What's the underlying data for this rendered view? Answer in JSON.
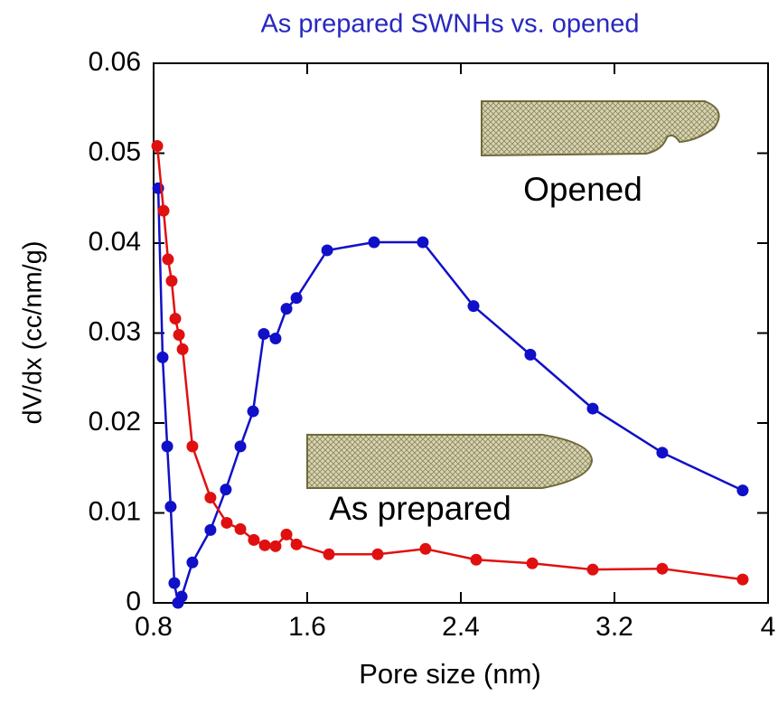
{
  "chart_data": {
    "type": "line",
    "title": "As prepared SWNHs vs. opened",
    "x_label": "Pore size (nm)",
    "y_label": "dV/dx (cc/nm/g)",
    "xlim": [
      0.8,
      4
    ],
    "xticks": [
      0.8,
      1.6,
      2.4,
      3.2,
      4
    ],
    "ylim": [
      0,
      0.06
    ],
    "yticks": [
      0,
      0.01,
      0.02,
      0.03,
      0.04,
      0.05,
      0.06
    ],
    "series": [
      {
        "name": "Opened",
        "color": "#1010c8",
        "x": [
          0.824,
          0.847,
          0.871,
          0.889,
          0.908,
          0.927,
          0.946,
          1.002,
          1.096,
          1.176,
          1.252,
          1.318,
          1.374,
          1.435,
          1.492,
          1.544,
          1.704,
          1.948,
          2.202,
          2.466,
          2.762,
          3.087,
          3.449,
          3.868
        ],
        "values": [
          0.0461,
          0.0273,
          0.0174,
          0.0107,
          0.0022,
          0.0,
          0.0007,
          0.0045,
          0.0081,
          0.0126,
          0.0174,
          0.0213,
          0.0299,
          0.0294,
          0.0327,
          0.0339,
          0.0392,
          0.0401,
          0.0401,
          0.033,
          0.0276,
          0.0216,
          0.0167,
          0.0125
        ]
      },
      {
        "name": "As prepared",
        "color": "#e01010",
        "x": [
          0.819,
          0.852,
          0.875,
          0.894,
          0.913,
          0.932,
          0.951,
          1.002,
          1.096,
          1.181,
          1.252,
          1.322,
          1.379,
          1.435,
          1.492,
          1.544,
          1.713,
          1.967,
          2.216,
          2.48,
          2.772,
          3.087,
          3.449,
          3.868
        ],
        "values": [
          0.0508,
          0.0436,
          0.0382,
          0.0358,
          0.0316,
          0.0298,
          0.0282,
          0.0174,
          0.0117,
          0.0089,
          0.0082,
          0.007,
          0.0064,
          0.0063,
          0.0076,
          0.0065,
          0.0054,
          0.0054,
          0.006,
          0.0048,
          0.0044,
          0.0037,
          0.0038,
          0.0026
        ]
      }
    ]
  }
}
